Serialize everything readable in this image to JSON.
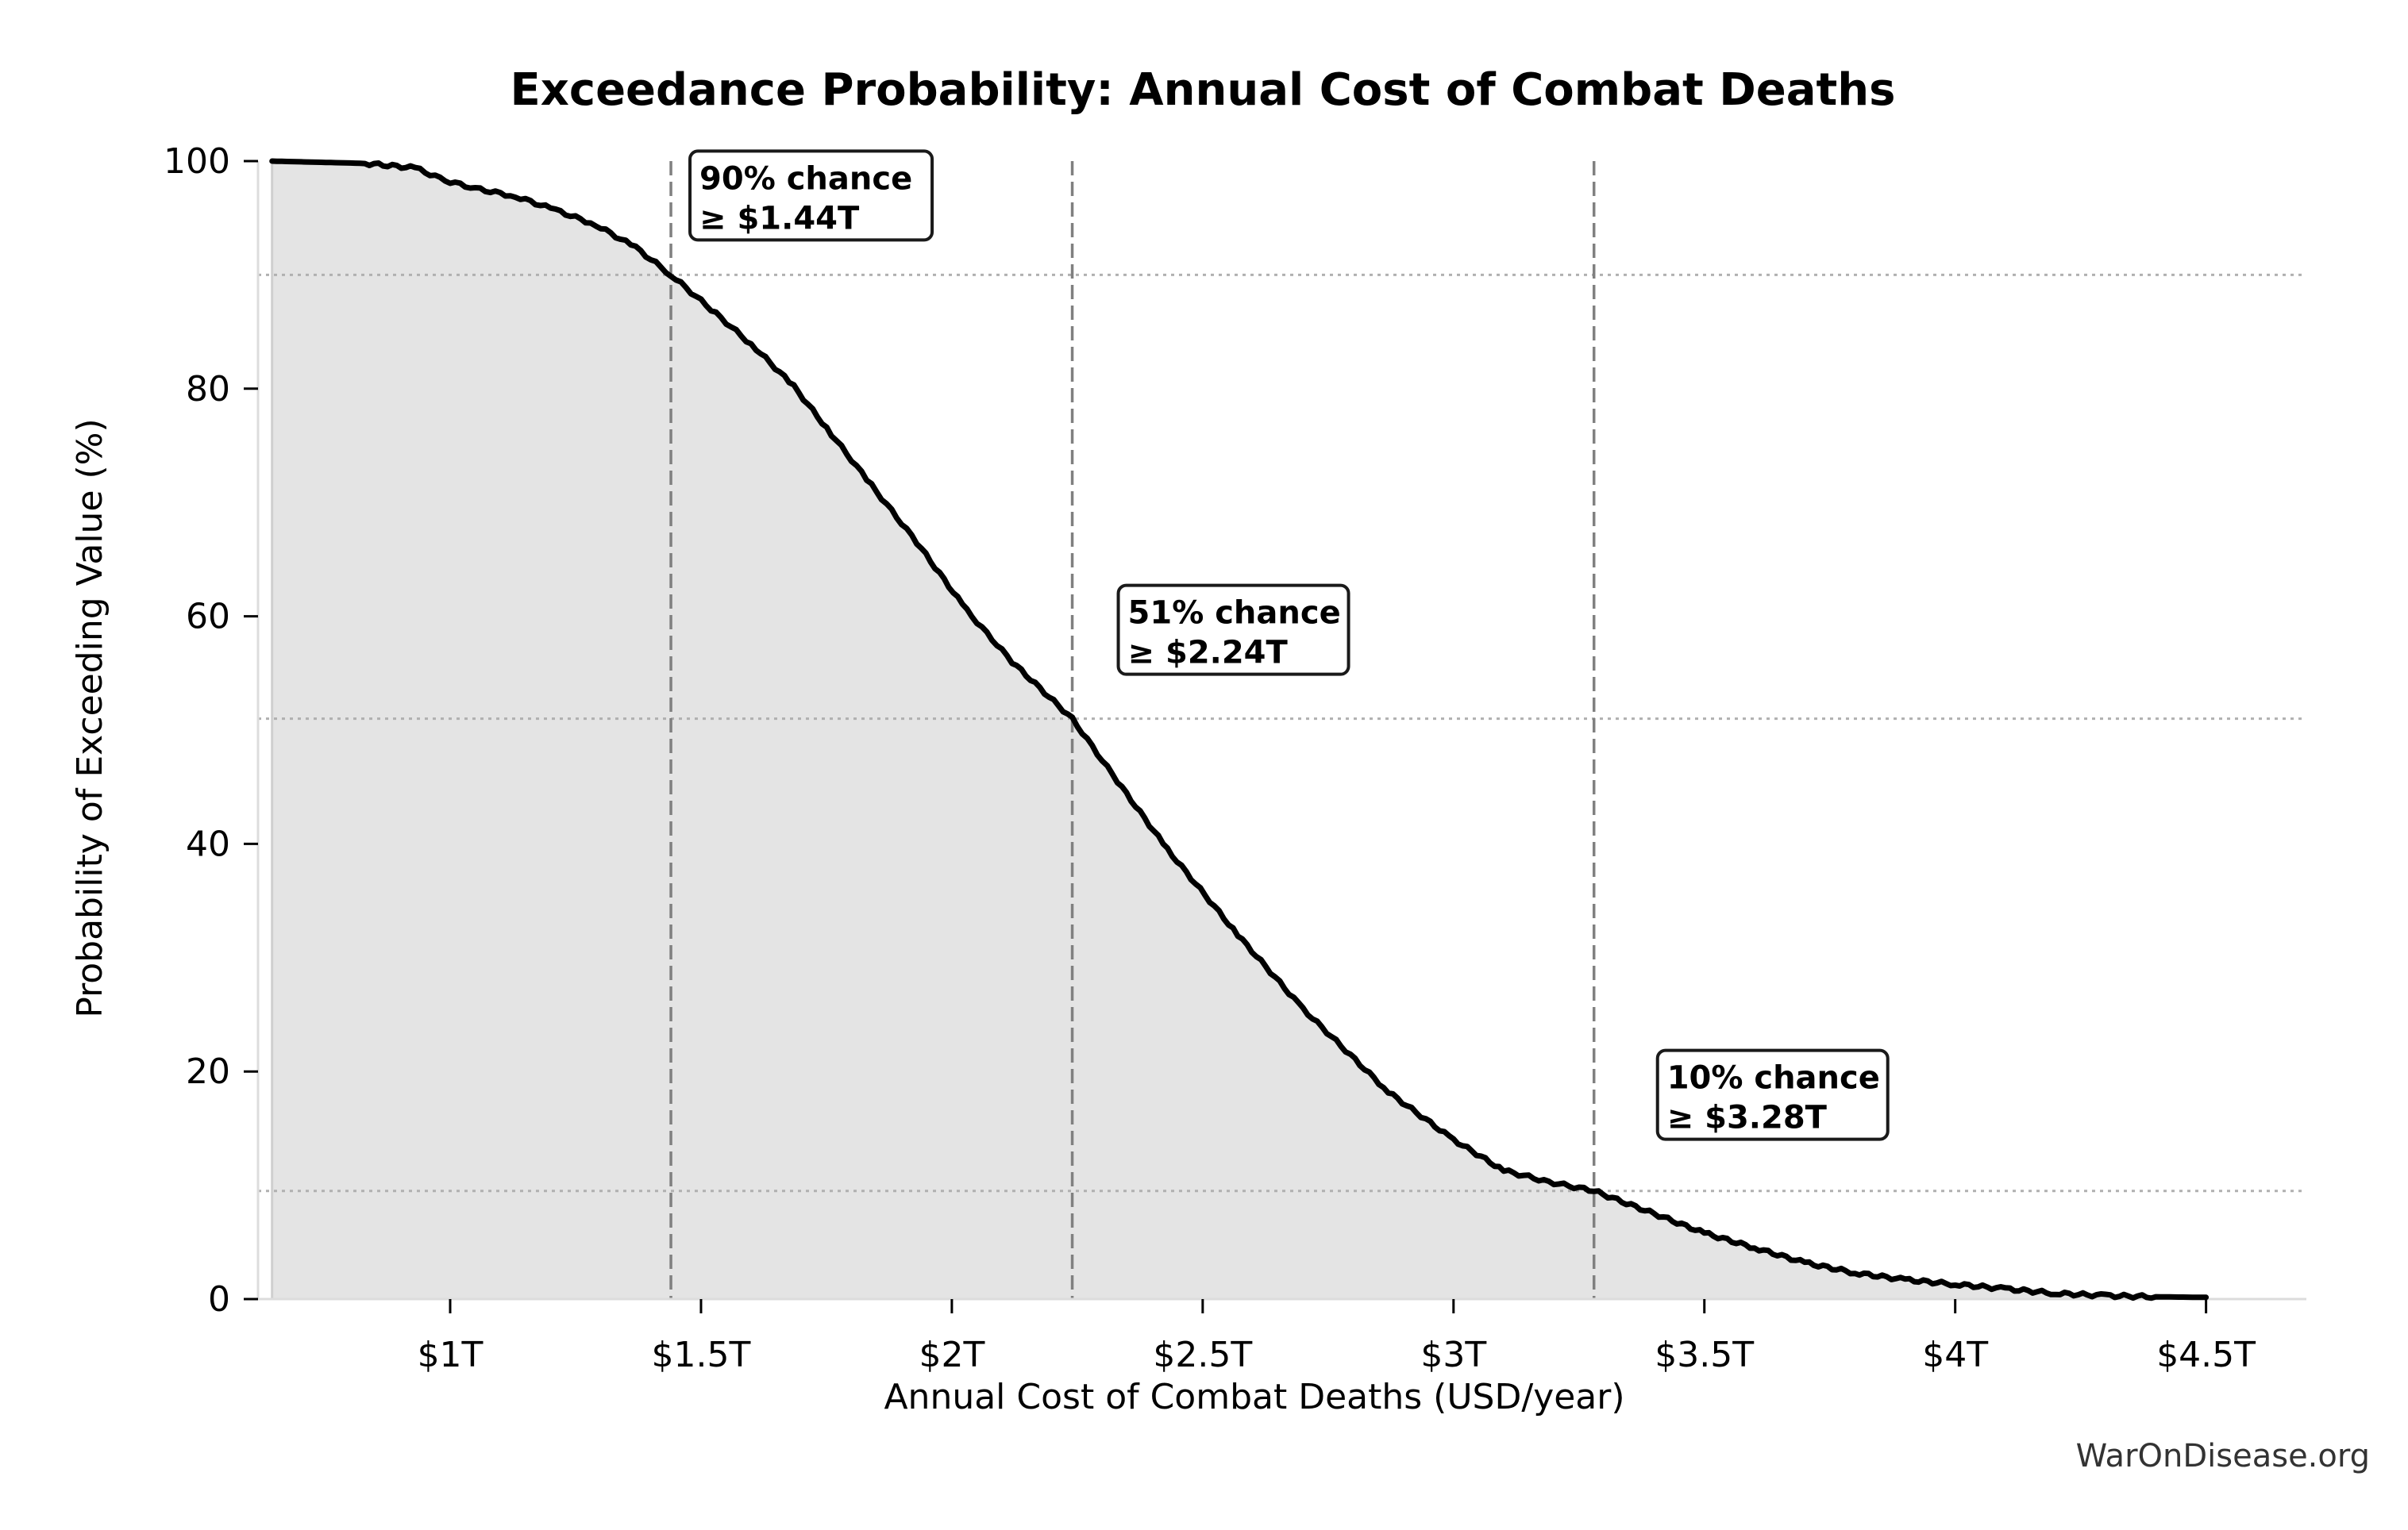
{
  "chart_data": {
    "type": "area",
    "title": "Exceedance Probability: Annual Cost of Combat Deaths",
    "xlabel": "Annual Cost of Combat Deaths (USD/year)",
    "ylabel": "Probability of Exceeding Value (%)",
    "xlim": [
      0.617,
      4.7
    ],
    "ylim": [
      0,
      100
    ],
    "x_unit": "trillion USD",
    "xticks": [
      1,
      1.5,
      2,
      2.5,
      3,
      3.5,
      4,
      4.5
    ],
    "xtick_labels": [
      "$1T",
      "$1.5T",
      "$2T",
      "$2.5T",
      "$3T",
      "$3.5T",
      "$4T",
      "$4.5T"
    ],
    "yticks": [
      0,
      20,
      40,
      60,
      80,
      100
    ],
    "ytick_labels": [
      "0",
      "20",
      "40",
      "60",
      "80",
      "100"
    ],
    "grid": false,
    "series": [
      {
        "name": "Exceedance probability",
        "color": "#000000",
        "fill": "#e4e4e4",
        "x": [
          0.645,
          0.83,
          0.93,
          0.99,
          1.05,
          1.13,
          1.21,
          1.29,
          1.37,
          1.44,
          1.53,
          1.61,
          1.685,
          1.76,
          1.84,
          1.93,
          2.03,
          2.12,
          2.24,
          2.33,
          2.43,
          2.57,
          2.7,
          2.87,
          3.0,
          3.1,
          3.19,
          3.28,
          3.4,
          3.5,
          3.6,
          3.7,
          3.8,
          3.9,
          4.0,
          4.1,
          4.2,
          4.3,
          4.4,
          4.5
        ],
        "y": [
          100,
          99.8,
          99.4,
          98.3,
          97.6,
          96.9,
          95.7,
          94.4,
          92.4,
          90,
          86.6,
          83.5,
          80.2,
          76.0,
          71.5,
          66.5,
          60.5,
          56.0,
          51,
          45.5,
          39.5,
          32.0,
          25.5,
          18.2,
          14.0,
          11.3,
          10.3,
          9.5,
          7.5,
          5.8,
          4.5,
          3.2,
          2.3,
          1.7,
          1.3,
          0.9,
          0.5,
          0.3,
          0.2,
          0.15
        ]
      }
    ],
    "reference_lines": {
      "vertical": [
        1.44,
        2.24,
        3.28
      ],
      "horizontal": [
        90,
        51,
        9.5
      ]
    },
    "annotations": [
      {
        "line1": "90% chance",
        "line2": "≥ $1.44T",
        "x": 1.44,
        "y": 90
      },
      {
        "line1": "51% chance",
        "line2": "≥ $2.24T",
        "x": 2.24,
        "y": 51
      },
      {
        "line1": "10% chance",
        "line2": "≥ $3.28T",
        "x": 3.28,
        "y": 10
      }
    ],
    "watermark": "WarOnDisease.org"
  }
}
